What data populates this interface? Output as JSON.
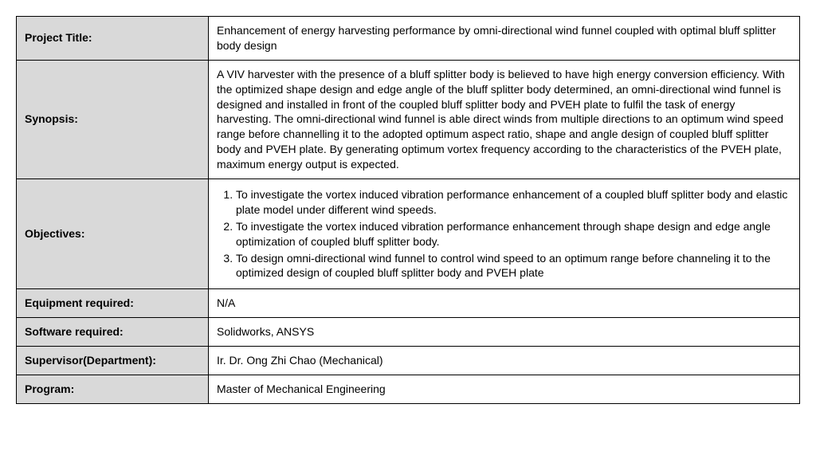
{
  "table": {
    "label_bg": "#d9d9d9",
    "value_bg": "#ffffff",
    "border_color": "#000000",
    "rows": [
      {
        "label": "Project Title:",
        "value": "Enhancement of energy harvesting performance by omni-directional wind funnel coupled with optimal bluff splitter body design"
      },
      {
        "label": "Synopsis:",
        "value": "A VIV harvester with the presence of a bluff splitter body is believed to have high energy conversion efficiency. With the optimized shape design and edge angle of the bluff splitter body determined, an omni-directional wind funnel is designed and installed in front of the coupled bluff splitter body and PVEH plate to fulfil the task of energy harvesting. The omni-directional wind funnel is able direct winds from multiple directions to an optimum wind speed range before channelling it to the adopted optimum aspect ratio, shape and angle design of coupled bluff splitter body and PVEH plate. By generating optimum vortex frequency according to the characteristics of the PVEH plate, maximum energy output is expected."
      },
      {
        "label": "Objectives:",
        "type": "list",
        "items": [
          "To investigate the vortex induced vibration performance enhancement of a coupled bluff splitter body and elastic plate model under different wind speeds.",
          "To investigate the vortex induced vibration performance enhancement through shape design and edge angle optimization of coupled bluff splitter body.",
          "To design omni-directional wind funnel to control wind speed to an optimum range before channeling it to the optimized design of coupled bluff splitter body and PVEH plate"
        ]
      },
      {
        "label": "Equipment required:",
        "value": "N/A"
      },
      {
        "label": "Software required:",
        "value": "Solidworks, ANSYS"
      },
      {
        "label": "Supervisor(Department):",
        "value": "Ir. Dr. Ong Zhi Chao (Mechanical)"
      },
      {
        "label": "Program:",
        "value": "Master of Mechanical Engineering"
      }
    ]
  }
}
